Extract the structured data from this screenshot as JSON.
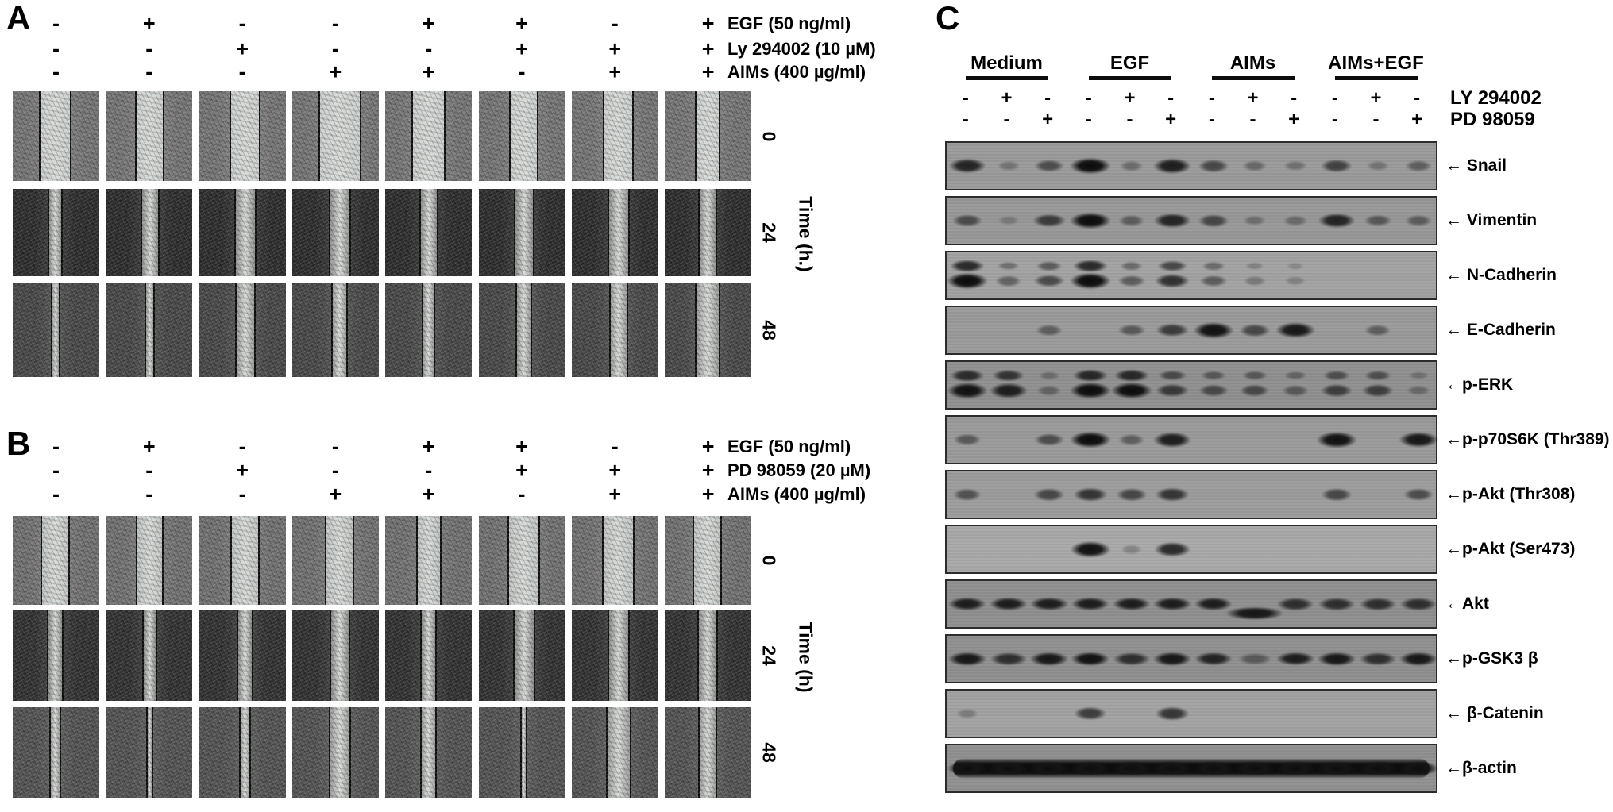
{
  "figure": {
    "panel_a": {
      "label": "A",
      "conditions": [
        {
          "label": "EGF (50 ng/ml)",
          "values": [
            "-",
            "+",
            "-",
            "-",
            "+",
            "+",
            "-",
            "+"
          ]
        },
        {
          "label": "Ly 294002 (10 µM)",
          "values": [
            "-",
            "-",
            "+",
            "-",
            "-",
            "+",
            "+",
            "+"
          ]
        },
        {
          "label": "AIMs (400 µg/ml)",
          "values": [
            "-",
            "-",
            "-",
            "+",
            "+",
            "-",
            "+",
            "+"
          ]
        }
      ],
      "time_axis": {
        "title": "Time (h.)",
        "ticks": [
          "0",
          "24",
          "48"
        ]
      },
      "rows": [
        {
          "time": "0",
          "base": "#777777",
          "wound": "#cdd1cf",
          "gaps": [
            0.34,
            0.3,
            0.32,
            0.46,
            0.36,
            0.3,
            0.32,
            0.26
          ]
        },
        {
          "time": "24",
          "base": "#2e2e2e",
          "wound": "#8f928f",
          "gaps": [
            0.14,
            0.18,
            0.22,
            0.22,
            0.18,
            0.2,
            0.22,
            0.18
          ]
        },
        {
          "time": "48",
          "base": "#4a4a4a",
          "wound": "#9b9e9b",
          "gaps": [
            0.07,
            0.08,
            0.2,
            0.16,
            0.12,
            0.16,
            0.18,
            0.26
          ]
        }
      ]
    },
    "panel_b": {
      "label": "B",
      "conditions": [
        {
          "label": "EGF (50 ng/ml)",
          "values": [
            "-",
            "+",
            "-",
            "-",
            "+",
            "+",
            "-",
            "+"
          ]
        },
        {
          "label": "PD 98059 (20 µM)",
          "values": [
            "-",
            "-",
            "+",
            "-",
            "-",
            "+",
            "+",
            "+"
          ]
        },
        {
          "label": "AIMs (400 µg/ml)",
          "values": [
            "-",
            "-",
            "-",
            "+",
            "+",
            "-",
            "+",
            "+"
          ]
        }
      ],
      "time_axis": {
        "title": "Time (h)",
        "ticks": [
          "0",
          "24",
          "48"
        ]
      },
      "rows": [
        {
          "time": "0",
          "base": "#737373",
          "wound": "#c2c6c4",
          "gaps": [
            0.3,
            0.28,
            0.3,
            0.3,
            0.26,
            0.34,
            0.34,
            0.3
          ]
        },
        {
          "time": "24",
          "base": "#333333",
          "wound": "#8c8f8c",
          "gaps": [
            0.16,
            0.14,
            0.16,
            0.2,
            0.16,
            0.22,
            0.22,
            0.2
          ]
        },
        {
          "time": "48",
          "base": "#555555",
          "wound": "#9b9e9b",
          "gaps": [
            0.1,
            0.05,
            0.1,
            0.22,
            0.16,
            0.05,
            0.26,
            0.18
          ]
        }
      ]
    },
    "panel_c": {
      "label": "C",
      "groups": [
        "Medium",
        "EGF",
        "AIMs",
        "AIMs+EGF"
      ],
      "inhibitor_rows": [
        {
          "label": "LY 294002",
          "pattern": [
            "-",
            "+",
            "-"
          ]
        },
        {
          "label": "PD 98059",
          "pattern": [
            "-",
            "-",
            "+"
          ]
        }
      ],
      "blots": [
        {
          "label": "← Snail",
          "type": "single",
          "bg": "#9a9a9a",
          "bands": [
            0.8,
            0.12,
            0.45,
            1.0,
            0.18,
            0.85,
            0.5,
            0.22,
            0.15,
            0.55,
            0.12,
            0.3
          ]
        },
        {
          "label": "← Vimentin",
          "type": "single",
          "bg": "#989898",
          "bands": [
            0.45,
            0.05,
            0.6,
            1.0,
            0.3,
            0.8,
            0.5,
            0.15,
            0.18,
            0.8,
            0.35,
            0.3
          ]
        },
        {
          "label": "← N-Cadherin",
          "type": "double",
          "bg": "#a2a2a2",
          "bands": [
            1.0,
            0.3,
            0.5,
            1.0,
            0.35,
            0.7,
            0.35,
            0.12,
            0.05,
            0.0,
            0.0,
            0.0
          ]
        },
        {
          "label": "← E-Cadherin",
          "type": "single",
          "bg": "#9a9a9a",
          "bands": [
            0.0,
            0.0,
            0.3,
            0.0,
            0.35,
            0.6,
            0.95,
            0.5,
            0.9,
            0.0,
            0.3,
            0.0
          ]
        },
        {
          "label": "←p-ERK",
          "type": "double",
          "bg": "#8f8f8f",
          "bands": [
            0.95,
            0.85,
            0.2,
            1.0,
            1.0,
            0.6,
            0.45,
            0.45,
            0.3,
            0.55,
            0.55,
            0.15
          ]
        },
        {
          "label": "←p-p70S6K (Thr389)",
          "type": "single",
          "bg": "#9a9a9a",
          "bands": [
            0.35,
            0.0,
            0.45,
            1.0,
            0.3,
            0.85,
            0.0,
            0.0,
            0.0,
            0.95,
            0.0,
            0.9
          ]
        },
        {
          "label": "←p-Akt (Thr308)",
          "type": "single",
          "bg": "#9c9c9c",
          "bands": [
            0.4,
            0.0,
            0.5,
            0.65,
            0.5,
            0.65,
            0.0,
            0.0,
            0.0,
            0.5,
            0.0,
            0.45
          ]
        },
        {
          "label": "←p-Akt (Ser473)",
          "type": "single",
          "bg": "#a8a8a8",
          "bands": [
            0.0,
            0.0,
            0.0,
            0.95,
            0.06,
            0.75,
            0.0,
            0.0,
            0.0,
            0.0,
            0.0,
            0.0
          ]
        },
        {
          "label": "←Akt",
          "type": "single",
          "bg": "#8f8f8f",
          "wide": true,
          "dip": 7,
          "bands": [
            0.85,
            0.85,
            0.85,
            0.85,
            0.85,
            0.85,
            0.85,
            0.9,
            0.7,
            0.7,
            0.7,
            0.7
          ]
        },
        {
          "label": "←p-GSK3 β",
          "type": "single",
          "bg": "#8f8f8f",
          "wide": true,
          "bands": [
            0.9,
            0.7,
            0.9,
            0.95,
            0.7,
            0.9,
            0.8,
            0.3,
            0.85,
            0.9,
            0.7,
            0.9
          ]
        },
        {
          "label": "← β-Catenin",
          "type": "single",
          "bg": "#a2a2a2",
          "bands": [
            0.08,
            0.0,
            0.0,
            0.6,
            0.0,
            0.65,
            0.0,
            0.0,
            0.0,
            0.0,
            0.0,
            0.0
          ]
        },
        {
          "label": "←β-actin",
          "type": "continuous",
          "bg": "#909090",
          "wide": true,
          "bands": [
            1,
            1,
            1,
            1,
            1,
            1,
            1,
            1,
            1,
            1,
            1,
            1
          ]
        }
      ]
    }
  }
}
